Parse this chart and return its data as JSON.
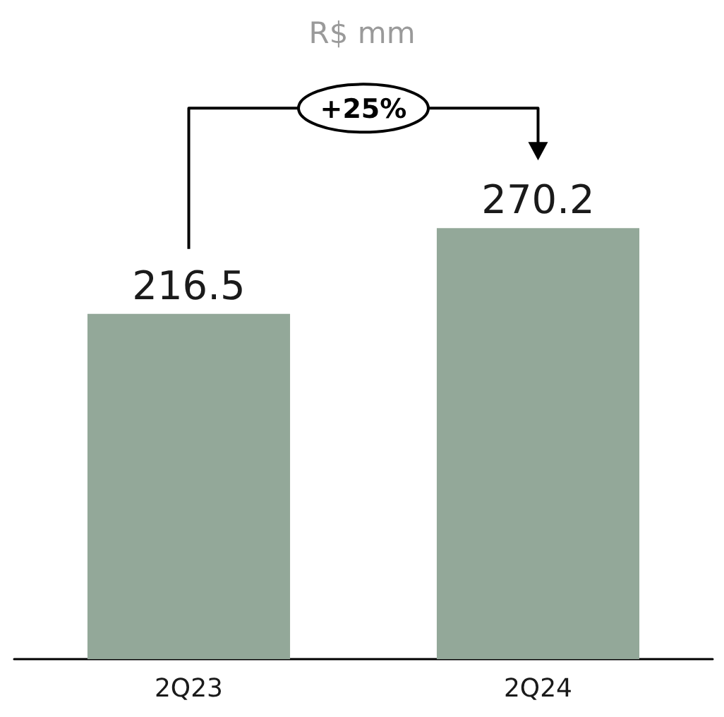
{
  "chart_data": {
    "type": "bar",
    "title": "R$ mm",
    "categories": [
      "2Q23",
      "2Q24"
    ],
    "values": [
      216.5,
      270.2
    ],
    "color": "#93a899",
    "data_labels": true,
    "annotations": [
      "+25%"
    ]
  }
}
